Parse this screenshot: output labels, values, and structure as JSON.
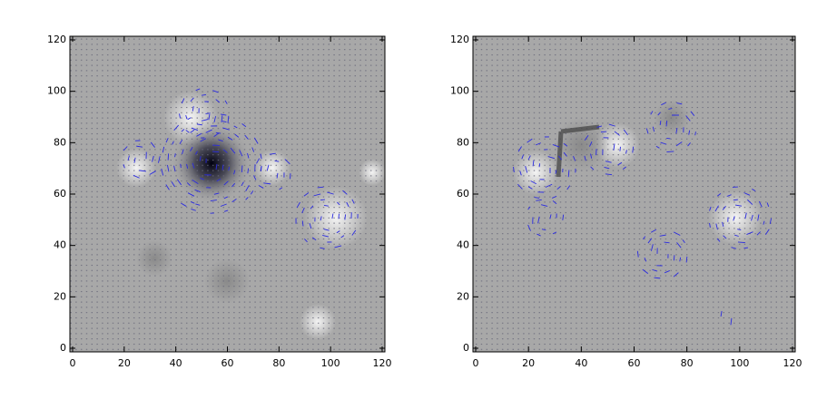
{
  "chart_data": [
    {
      "type": "vector_field",
      "xlim": [
        0,
        120
      ],
      "ylim": [
        0,
        120
      ],
      "xticks": [
        0,
        20,
        40,
        60,
        80,
        100,
        120
      ],
      "yticks": [
        0,
        20,
        40,
        60,
        80,
        100,
        120
      ]
    },
    {
      "type": "vector_field",
      "xlim": [
        0,
        120
      ],
      "ylim": [
        0,
        120
      ],
      "xticks": [
        0,
        20,
        40,
        60,
        80,
        100,
        120
      ],
      "yticks": [
        0,
        20,
        40,
        60,
        80,
        100,
        120
      ]
    }
  ]
}
